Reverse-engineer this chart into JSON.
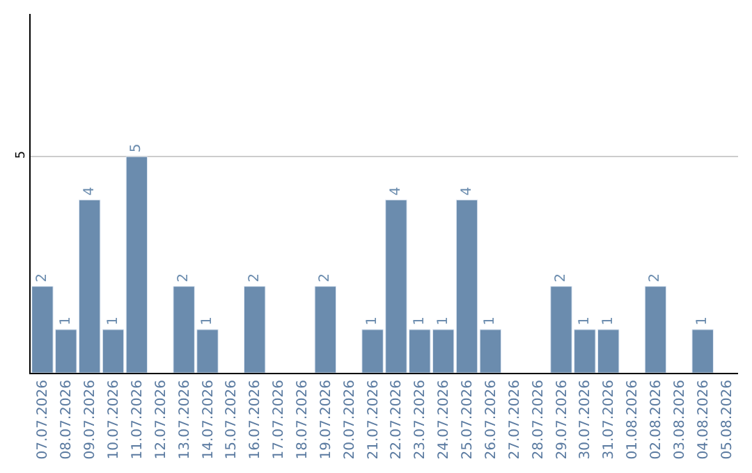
{
  "chart_data": {
    "type": "bar",
    "categories": [
      "07.07.2026",
      "08.07.2026",
      "09.07.2026",
      "10.07.2026",
      "11.07.2026",
      "12.07.2026",
      "13.07.2026",
      "14.07.2026",
      "15.07.2026",
      "16.07.2026",
      "17.07.2026",
      "18.07.2026",
      "19.07.2026",
      "20.07.2026",
      "21.07.2026",
      "22.07.2026",
      "23.07.2026",
      "24.07.2026",
      "25.07.2026",
      "26.07.2026",
      "27.07.2026",
      "28.07.2026",
      "29.07.2026",
      "30.07.2026",
      "31.07.2026",
      "01.08.2026",
      "02.08.2026",
      "03.08.2026",
      "04.08.2026",
      "05.08.2026"
    ],
    "values": [
      2,
      1,
      4,
      1,
      5,
      null,
      2,
      1,
      null,
      2,
      null,
      null,
      2,
      null,
      1,
      4,
      1,
      1,
      4,
      1,
      null,
      null,
      2,
      1,
      1,
      null,
      2,
      null,
      1,
      null
    ],
    "color": "#6b8cae",
    "ylim": [
      0,
      8.3
    ],
    "yticks": [
      5
    ],
    "grid": "y",
    "data_labels": true,
    "legend": false
  }
}
